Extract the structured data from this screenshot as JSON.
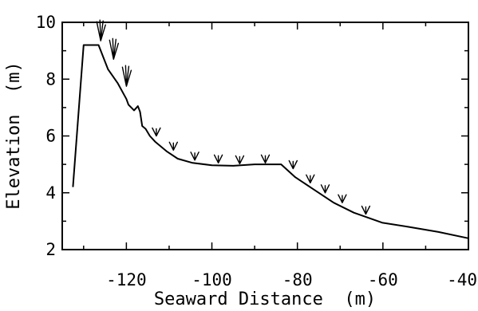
{
  "chart_data": {
    "type": "line",
    "title": "",
    "xlabel": "Seaward Distance  (m)",
    "ylabel": "Elevation  (m)",
    "xlim": [
      -135,
      -40
    ],
    "ylim": [
      2,
      10
    ],
    "xticks": [
      -120,
      -100,
      -80,
      -60,
      -40
    ],
    "yticks": [
      2,
      4,
      6,
      8,
      10
    ],
    "xtick_labels": [
      "-120",
      "-100",
      "-80",
      "-60",
      "-40"
    ],
    "ytick_labels": [
      "2",
      "4",
      "6",
      "8",
      "10"
    ],
    "grid": false,
    "series": [
      {
        "x": [
          -132.5,
          -130.0,
          -126.5,
          -124.3,
          -122.0,
          -120.0,
          -119.5,
          -118.2,
          -117.3,
          -116.8,
          -116.3,
          -115.5,
          -114.5,
          -113.3,
          -110.5,
          -108.0,
          -104.5,
          -100.0,
          -95.0,
          -90.0,
          -83.8,
          -80.5,
          -76.5,
          -71.5,
          -66.8,
          -60.2,
          -54.0,
          -47.0,
          -40.0
        ],
        "y": [
          4.2,
          9.2,
          9.2,
          8.35,
          7.85,
          7.3,
          7.1,
          6.9,
          7.05,
          6.85,
          6.35,
          6.25,
          6.0,
          5.8,
          5.45,
          5.2,
          5.05,
          4.97,
          4.95,
          5.0,
          5.0,
          4.55,
          4.15,
          3.65,
          3.3,
          2.95,
          2.8,
          2.62,
          2.4
        ]
      }
    ],
    "vegetation_markers": [
      {
        "x": -126.0,
        "y": 9.35
      },
      {
        "x": -123.0,
        "y": 8.7
      },
      {
        "x": -120.0,
        "y": 7.75
      },
      {
        "x": -113.0,
        "y": 6.0
      },
      {
        "x": -109.0,
        "y": 5.5
      },
      {
        "x": -104.0,
        "y": 5.15
      },
      {
        "x": -98.5,
        "y": 5.05
      },
      {
        "x": -93.5,
        "y": 5.02
      },
      {
        "x": -87.5,
        "y": 5.05
      },
      {
        "x": -81.0,
        "y": 4.85
      },
      {
        "x": -77.0,
        "y": 4.35
      },
      {
        "x": -73.5,
        "y": 4.0
      },
      {
        "x": -69.5,
        "y": 3.65
      },
      {
        "x": -64.0,
        "y": 3.25
      }
    ]
  }
}
